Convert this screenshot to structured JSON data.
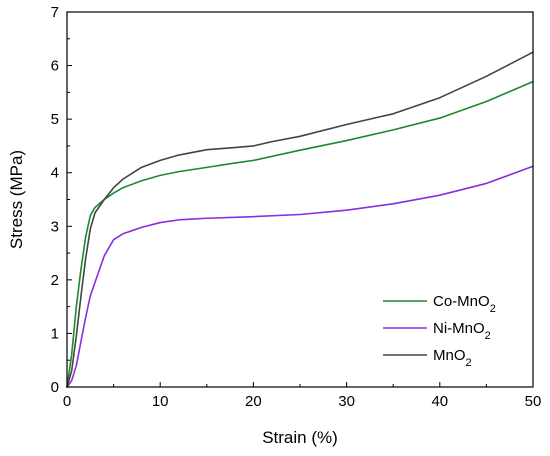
{
  "chart_data": {
    "type": "line",
    "xlabel": "Strain (%)",
    "ylabel": "Stress (MPa)",
    "xlim": [
      0,
      50
    ],
    "ylim": [
      0,
      7
    ],
    "xticks": [
      "0",
      "10",
      "20",
      "30",
      "40",
      "50"
    ],
    "yticks": [
      "0",
      "1",
      "2",
      "3",
      "4",
      "5",
      "6",
      "7"
    ],
    "grid": false,
    "legend_position": "bottom-right",
    "series": [
      {
        "name": "Co-MnO2",
        "legend_base": "Co-MnO",
        "legend_sub": "2",
        "color": "#1a8a2a",
        "points": [
          [
            0,
            0
          ],
          [
            0.5,
            0.6
          ],
          [
            1,
            1.5
          ],
          [
            1.5,
            2.2
          ],
          [
            2,
            2.8
          ],
          [
            2.5,
            3.2
          ],
          [
            3,
            3.35
          ],
          [
            4,
            3.5
          ],
          [
            5,
            3.62
          ],
          [
            6,
            3.72
          ],
          [
            8,
            3.85
          ],
          [
            10,
            3.95
          ],
          [
            12,
            4.02
          ],
          [
            15,
            4.1
          ],
          [
            18,
            4.18
          ],
          [
            20,
            4.23
          ],
          [
            25,
            4.42
          ],
          [
            30,
            4.6
          ],
          [
            35,
            4.8
          ],
          [
            40,
            5.02
          ],
          [
            45,
            5.33
          ],
          [
            50,
            5.7
          ]
        ]
      },
      {
        "name": "Ni-MnO2",
        "legend_base": "Ni-MnO",
        "legend_sub": "2",
        "color": "#8b2be2",
        "points": [
          [
            0,
            0
          ],
          [
            0.5,
            0.12
          ],
          [
            1,
            0.4
          ],
          [
            1.5,
            0.85
          ],
          [
            2,
            1.3
          ],
          [
            2.5,
            1.7
          ],
          [
            3,
            1.95
          ],
          [
            3.5,
            2.2
          ],
          [
            4,
            2.45
          ],
          [
            5,
            2.75
          ],
          [
            6,
            2.86
          ],
          [
            8,
            2.98
          ],
          [
            10,
            3.07
          ],
          [
            12,
            3.12
          ],
          [
            15,
            3.15
          ],
          [
            20,
            3.18
          ],
          [
            25,
            3.22
          ],
          [
            30,
            3.3
          ],
          [
            35,
            3.42
          ],
          [
            40,
            3.58
          ],
          [
            45,
            3.8
          ],
          [
            50,
            4.12
          ]
        ]
      },
      {
        "name": "MnO2",
        "legend_base": "MnO",
        "legend_sub": "2",
        "color": "#444444",
        "points": [
          [
            0,
            0
          ],
          [
            0.5,
            0.3
          ],
          [
            1,
            0.95
          ],
          [
            1.5,
            1.7
          ],
          [
            2,
            2.4
          ],
          [
            2.5,
            2.95
          ],
          [
            3,
            3.25
          ],
          [
            4,
            3.5
          ],
          [
            5,
            3.72
          ],
          [
            6,
            3.88
          ],
          [
            8,
            4.1
          ],
          [
            10,
            4.23
          ],
          [
            12,
            4.33
          ],
          [
            15,
            4.43
          ],
          [
            18,
            4.47
          ],
          [
            20,
            4.5
          ],
          [
            22,
            4.58
          ],
          [
            25,
            4.68
          ],
          [
            30,
            4.9
          ],
          [
            35,
            5.1
          ],
          [
            40,
            5.4
          ],
          [
            45,
            5.8
          ],
          [
            50,
            6.25
          ]
        ]
      }
    ]
  }
}
